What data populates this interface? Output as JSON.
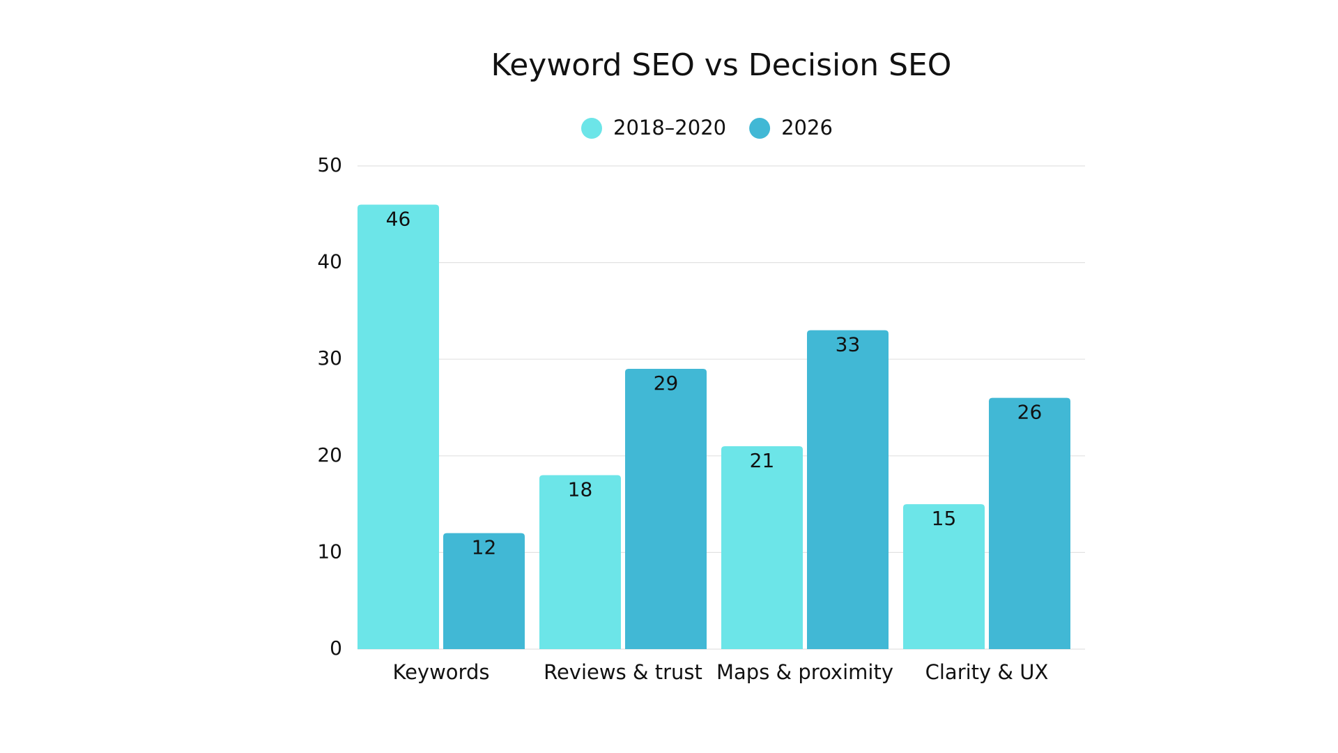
{
  "chart_data": {
    "type": "bar",
    "title": "Keyword SEO vs Decision SEO",
    "categories": [
      "Keywords",
      "Reviews & trust",
      "Maps & proximity",
      "Clarity & UX"
    ],
    "series": [
      {
        "name": "2018–2020",
        "color": "#6ce5e8",
        "values": [
          46,
          18,
          21,
          15
        ]
      },
      {
        "name": "2026",
        "color": "#41b8d5",
        "values": [
          12,
          29,
          33,
          26
        ]
      }
    ],
    "ylim": [
      0,
      50
    ],
    "yticks": [
      0,
      10,
      20,
      30,
      40,
      50
    ],
    "grid": true,
    "legend": "top"
  }
}
